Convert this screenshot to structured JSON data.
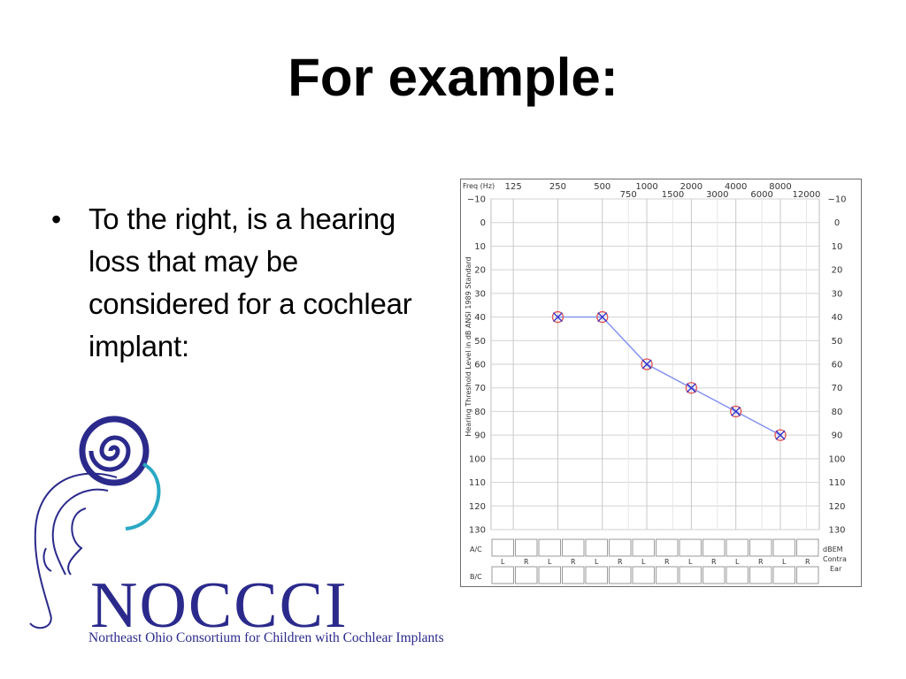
{
  "slide": {
    "title": "For example:",
    "bullet": "To the right, is a hearing loss that may be considered for a cochlear implant:"
  },
  "logo": {
    "wordmark": "NOCCCI",
    "subtitle": "Northeast Ohio Consortium for Children with Cochlear Implants"
  },
  "colors": {
    "logo_blue": "#2b2a8c",
    "logo_cyan": "#2aa8c4",
    "series_line": "#7f8ff0",
    "marker_circle": "#e05050",
    "marker_cross": "#3333cc"
  },
  "chart_data": {
    "type": "line",
    "freq_label": "Freq (Hz)",
    "x_scale": "log",
    "x_ticks_top": [
      "125",
      "250",
      "500",
      "1000",
      "2000",
      "4000",
      "8000"
    ],
    "x_ticks_bottom": [
      "750",
      "1500",
      "3000",
      "6000",
      "12000"
    ],
    "ylabel": "Hearing Threshold Level in dB ANSI 1989 Standard",
    "ylim": [
      -10,
      130
    ],
    "y_inverted": true,
    "y_ticks": [
      -10,
      0,
      10,
      20,
      30,
      40,
      50,
      60,
      70,
      80,
      90,
      100,
      110,
      120,
      130
    ],
    "grid": true,
    "series": [
      {
        "marker": "circle-with-x",
        "x": [
          250,
          500,
          1000,
          2000,
          4000,
          8000
        ],
        "y": [
          40,
          40,
          60,
          70,
          80,
          90
        ]
      }
    ],
    "table": {
      "row1_label": "A/C",
      "row2_label": "B/C",
      "lr_labels": [
        "L",
        "R",
        "L",
        "R",
        "L",
        "R",
        "L",
        "R",
        "L",
        "R",
        "L",
        "R",
        "L",
        "R"
      ],
      "right_labels": [
        "dBEM",
        "Contra",
        "Ear"
      ]
    }
  }
}
